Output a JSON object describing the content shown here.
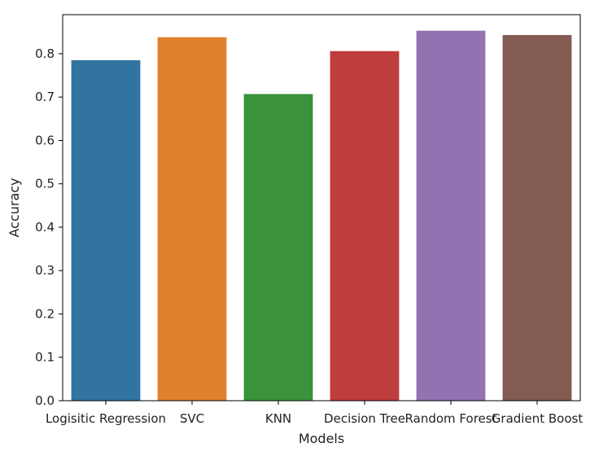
{
  "chart_data": {
    "type": "bar",
    "title": "",
    "xlabel": "Models",
    "ylabel": "Accuracy",
    "categories": [
      "Logisitic Regression",
      "SVC",
      "KNN",
      "Decision Tree",
      "Random Forest",
      "Gradient Boost"
    ],
    "values": [
      0.785,
      0.838,
      0.707,
      0.806,
      0.853,
      0.843
    ],
    "colors": [
      "#3274a1",
      "#e1812c",
      "#3a923a",
      "#c03d3e",
      "#9372b2",
      "#845b53"
    ],
    "ylim": [
      0,
      0.89
    ],
    "yticks": [
      0.0,
      0.1,
      0.2,
      0.3,
      0.4,
      0.5,
      0.6,
      0.7,
      0.8
    ],
    "ytick_labels": [
      "0.0",
      "0.1",
      "0.2",
      "0.3",
      "0.4",
      "0.5",
      "0.6",
      "0.7",
      "0.8"
    ],
    "grid": false,
    "legend": "none"
  }
}
